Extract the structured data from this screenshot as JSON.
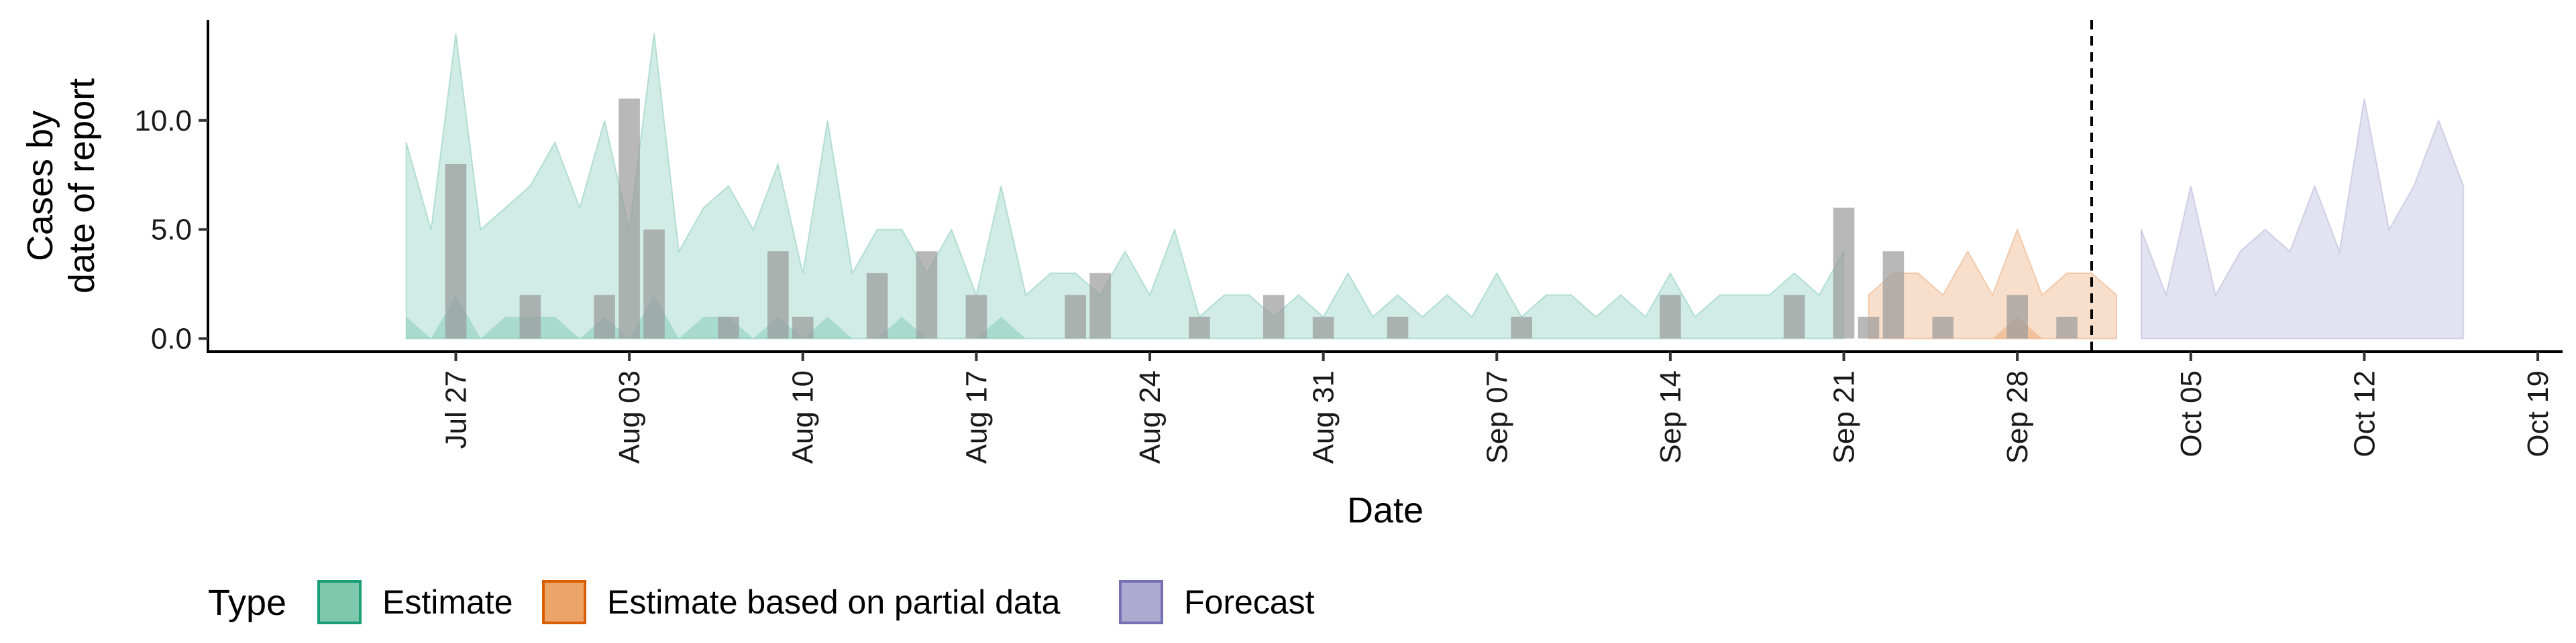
{
  "chart_data": {
    "type": "area",
    "x_axis": {
      "label": "Date",
      "scale": "date",
      "range": [
        "2020-07-17",
        "2020-10-20"
      ],
      "ticks": [
        {
          "date": "2020-07-27",
          "label": "Jul 27"
        },
        {
          "date": "2020-08-03",
          "label": "Aug 03"
        },
        {
          "date": "2020-08-10",
          "label": "Aug 10"
        },
        {
          "date": "2020-08-17",
          "label": "Aug 17"
        },
        {
          "date": "2020-08-24",
          "label": "Aug 24"
        },
        {
          "date": "2020-08-31",
          "label": "Aug 31"
        },
        {
          "date": "2020-09-07",
          "label": "Sep 07"
        },
        {
          "date": "2020-09-14",
          "label": "Sep 14"
        },
        {
          "date": "2020-09-21",
          "label": "Sep 21"
        },
        {
          "date": "2020-09-28",
          "label": "Sep 28"
        },
        {
          "date": "2020-10-05",
          "label": "Oct 05"
        },
        {
          "date": "2020-10-12",
          "label": "Oct 12"
        },
        {
          "date": "2020-10-19",
          "label": "Oct 19"
        }
      ]
    },
    "y_axis": {
      "label_lines": [
        "Cases by",
        "date of report"
      ],
      "range": [
        -0.6,
        14.6
      ],
      "ticks": [
        {
          "value": 0,
          "label": "0.0"
        },
        {
          "value": 5,
          "label": "5.0"
        },
        {
          "value": 10,
          "label": "10.0"
        }
      ]
    },
    "legend": {
      "title": "Type",
      "position": "bottom",
      "items": [
        {
          "label": "Estimate",
          "fill": "#7fc8ad",
          "stroke": "#1b9e77"
        },
        {
          "label": "Estimate based on partial data",
          "fill": "#eda468",
          "stroke": "#d95f02"
        },
        {
          "label": "Forecast",
          "fill": "#aeaad1",
          "stroke": "#7570b3"
        }
      ]
    },
    "forecast_cutoff": "2020-10-01",
    "series": [
      {
        "name": "Estimate",
        "color": "#1b9e77",
        "points": [
          {
            "date": "2020-07-25",
            "upper": 9
          },
          {
            "date": "2020-07-26",
            "upper": 5
          },
          {
            "date": "2020-07-27",
            "upper": 14
          },
          {
            "date": "2020-07-28",
            "upper": 5
          },
          {
            "date": "2020-07-29",
            "upper": 6
          },
          {
            "date": "2020-07-30",
            "upper": 7
          },
          {
            "date": "2020-07-31",
            "upper": 9
          },
          {
            "date": "2020-08-01",
            "upper": 6
          },
          {
            "date": "2020-08-02",
            "upper": 10
          },
          {
            "date": "2020-08-03",
            "upper": 5
          },
          {
            "date": "2020-08-04",
            "upper": 14
          },
          {
            "date": "2020-08-05",
            "upper": 4
          },
          {
            "date": "2020-08-06",
            "upper": 6
          },
          {
            "date": "2020-08-07",
            "upper": 7
          },
          {
            "date": "2020-08-08",
            "upper": 5
          },
          {
            "date": "2020-08-09",
            "upper": 8
          },
          {
            "date": "2020-08-10",
            "upper": 3
          },
          {
            "date": "2020-08-11",
            "upper": 10
          },
          {
            "date": "2020-08-12",
            "upper": 3
          },
          {
            "date": "2020-08-13",
            "upper": 5
          },
          {
            "date": "2020-08-14",
            "upper": 5
          },
          {
            "date": "2020-08-15",
            "upper": 3
          },
          {
            "date": "2020-08-16",
            "upper": 5
          },
          {
            "date": "2020-08-17",
            "upper": 2
          },
          {
            "date": "2020-08-18",
            "upper": 7
          },
          {
            "date": "2020-08-19",
            "upper": 2
          },
          {
            "date": "2020-08-20",
            "upper": 3
          },
          {
            "date": "2020-08-21",
            "upper": 3
          },
          {
            "date": "2020-08-22",
            "upper": 2
          },
          {
            "date": "2020-08-23",
            "upper": 4
          },
          {
            "date": "2020-08-24",
            "upper": 2
          },
          {
            "date": "2020-08-25",
            "upper": 5
          },
          {
            "date": "2020-08-26",
            "upper": 1
          },
          {
            "date": "2020-08-27",
            "upper": 2
          },
          {
            "date": "2020-08-28",
            "upper": 2
          },
          {
            "date": "2020-08-29",
            "upper": 1
          },
          {
            "date": "2020-08-30",
            "upper": 2
          },
          {
            "date": "2020-08-31",
            "upper": 1
          },
          {
            "date": "2020-09-01",
            "upper": 3
          },
          {
            "date": "2020-09-02",
            "upper": 1
          },
          {
            "date": "2020-09-03",
            "upper": 2
          },
          {
            "date": "2020-09-04",
            "upper": 1
          },
          {
            "date": "2020-09-05",
            "upper": 2
          },
          {
            "date": "2020-09-06",
            "upper": 1
          },
          {
            "date": "2020-09-07",
            "upper": 3
          },
          {
            "date": "2020-09-08",
            "upper": 1
          },
          {
            "date": "2020-09-09",
            "upper": 2
          },
          {
            "date": "2020-09-10",
            "upper": 2
          },
          {
            "date": "2020-09-11",
            "upper": 1
          },
          {
            "date": "2020-09-12",
            "upper": 2
          },
          {
            "date": "2020-09-13",
            "upper": 1
          },
          {
            "date": "2020-09-14",
            "upper": 3
          },
          {
            "date": "2020-09-15",
            "upper": 1
          },
          {
            "date": "2020-09-16",
            "upper": 2
          },
          {
            "date": "2020-09-17",
            "upper": 2
          },
          {
            "date": "2020-09-18",
            "upper": 2
          },
          {
            "date": "2020-09-19",
            "upper": 3
          },
          {
            "date": "2020-09-20",
            "upper": 2
          },
          {
            "date": "2020-09-21",
            "upper": 4
          }
        ],
        "lower_band": [
          {
            "date": "2020-07-25",
            "upper": 1
          },
          {
            "date": "2020-07-26",
            "upper": 0
          },
          {
            "date": "2020-07-27",
            "upper": 2
          },
          {
            "date": "2020-07-28",
            "upper": 0
          },
          {
            "date": "2020-07-29",
            "upper": 1
          },
          {
            "date": "2020-07-30",
            "upper": 1
          },
          {
            "date": "2020-07-31",
            "upper": 1
          },
          {
            "date": "2020-08-01",
            "upper": 0
          },
          {
            "date": "2020-08-02",
            "upper": 1
          },
          {
            "date": "2020-08-03",
            "upper": 0
          },
          {
            "date": "2020-08-04",
            "upper": 2
          },
          {
            "date": "2020-08-05",
            "upper": 0
          },
          {
            "date": "2020-08-06",
            "upper": 1
          },
          {
            "date": "2020-08-07",
            "upper": 1
          },
          {
            "date": "2020-08-08",
            "upper": 0
          },
          {
            "date": "2020-08-09",
            "upper": 1
          },
          {
            "date": "2020-08-10",
            "upper": 0
          },
          {
            "date": "2020-08-11",
            "upper": 1
          },
          {
            "date": "2020-08-12",
            "upper": 0
          },
          {
            "date": "2020-08-13",
            "upper": 0
          },
          {
            "date": "2020-08-14",
            "upper": 1
          },
          {
            "date": "2020-08-15",
            "upper": 0
          },
          {
            "date": "2020-08-16",
            "upper": 0
          },
          {
            "date": "2020-08-17",
            "upper": 0
          },
          {
            "date": "2020-08-18",
            "upper": 1
          },
          {
            "date": "2020-08-19",
            "upper": 0
          }
        ]
      },
      {
        "name": "Estimate based on partial data",
        "color": "#d95f02",
        "points": [
          {
            "date": "2020-09-22",
            "upper": 2
          },
          {
            "date": "2020-09-23",
            "upper": 3
          },
          {
            "date": "2020-09-24",
            "upper": 3
          },
          {
            "date": "2020-09-25",
            "upper": 2
          },
          {
            "date": "2020-09-26",
            "upper": 4
          },
          {
            "date": "2020-09-27",
            "upper": 2
          },
          {
            "date": "2020-09-28",
            "upper": 5
          },
          {
            "date": "2020-09-29",
            "upper": 2
          },
          {
            "date": "2020-09-30",
            "upper": 3
          },
          {
            "date": "2020-10-01",
            "upper": 3
          },
          {
            "date": "2020-10-02",
            "upper": 2
          }
        ],
        "lower_band": [
          {
            "date": "2020-09-27",
            "upper": 0
          },
          {
            "date": "2020-09-28",
            "upper": 1
          },
          {
            "date": "2020-09-29",
            "upper": 0
          }
        ]
      },
      {
        "name": "Forecast",
        "color": "#7570b3",
        "points": [
          {
            "date": "2020-10-03",
            "upper": 5
          },
          {
            "date": "2020-10-04",
            "upper": 2
          },
          {
            "date": "2020-10-05",
            "upper": 7
          },
          {
            "date": "2020-10-06",
            "upper": 2
          },
          {
            "date": "2020-10-07",
            "upper": 4
          },
          {
            "date": "2020-10-08",
            "upper": 5
          },
          {
            "date": "2020-10-09",
            "upper": 4
          },
          {
            "date": "2020-10-10",
            "upper": 7
          },
          {
            "date": "2020-10-11",
            "upper": 4
          },
          {
            "date": "2020-10-12",
            "upper": 11
          },
          {
            "date": "2020-10-13",
            "upper": 5
          },
          {
            "date": "2020-10-14",
            "upper": 7
          },
          {
            "date": "2020-10-15",
            "upper": 10
          },
          {
            "date": "2020-10-16",
            "upper": 7
          }
        ]
      }
    ],
    "observed_cases": {
      "color": "#9a9a9a",
      "bars": [
        {
          "date": "2020-07-27",
          "value": 8
        },
        {
          "date": "2020-07-30",
          "value": 2
        },
        {
          "date": "2020-08-02",
          "value": 2
        },
        {
          "date": "2020-08-03",
          "value": 11
        },
        {
          "date": "2020-08-04",
          "value": 5
        },
        {
          "date": "2020-08-07",
          "value": 1
        },
        {
          "date": "2020-08-09",
          "value": 4
        },
        {
          "date": "2020-08-10",
          "value": 1
        },
        {
          "date": "2020-08-13",
          "value": 3
        },
        {
          "date": "2020-08-15",
          "value": 4
        },
        {
          "date": "2020-08-17",
          "value": 2
        },
        {
          "date": "2020-08-21",
          "value": 2
        },
        {
          "date": "2020-08-22",
          "value": 3
        },
        {
          "date": "2020-08-26",
          "value": 1
        },
        {
          "date": "2020-08-29",
          "value": 2
        },
        {
          "date": "2020-08-31",
          "value": 1
        },
        {
          "date": "2020-09-03",
          "value": 1
        },
        {
          "date": "2020-09-08",
          "value": 1
        },
        {
          "date": "2020-09-14",
          "value": 2
        },
        {
          "date": "2020-09-19",
          "value": 2
        },
        {
          "date": "2020-09-21",
          "value": 6
        },
        {
          "date": "2020-09-22",
          "value": 1
        },
        {
          "date": "2020-09-23",
          "value": 4
        },
        {
          "date": "2020-09-25",
          "value": 1
        },
        {
          "date": "2020-09-28",
          "value": 2
        },
        {
          "date": "2020-09-30",
          "value": 1
        }
      ]
    }
  }
}
